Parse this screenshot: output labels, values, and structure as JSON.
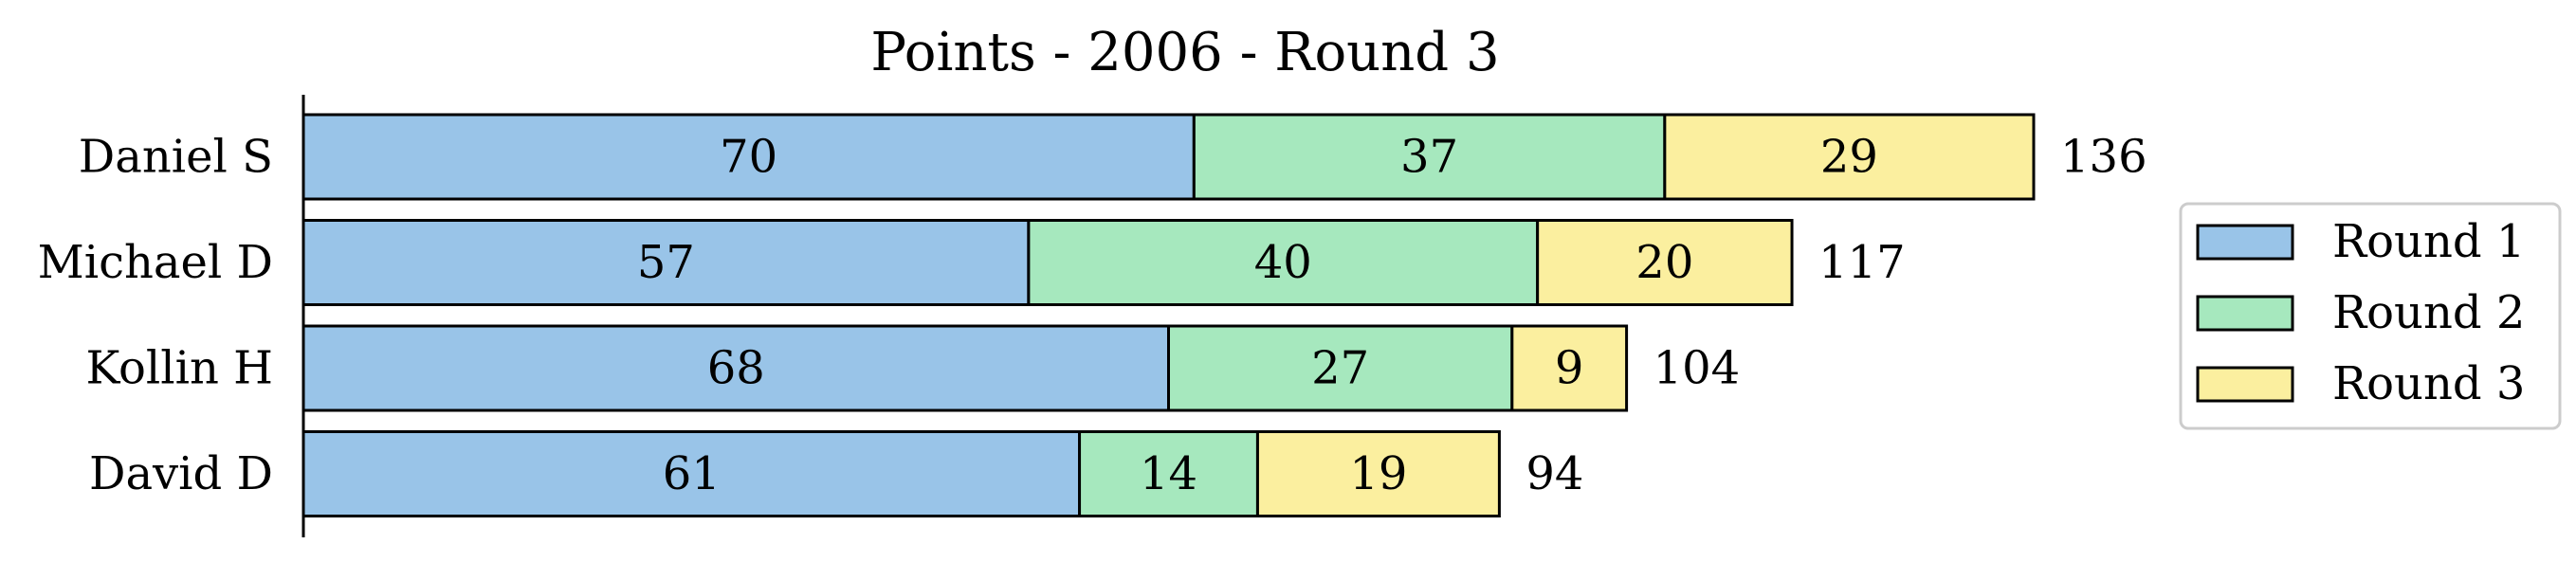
{
  "chart_data": {
    "type": "bar",
    "orientation": "horizontal",
    "stacked": true,
    "title": "Points - 2006 - Round 3",
    "xlabel": "",
    "ylabel": "",
    "categories": [
      "Daniel S",
      "Michael D",
      "Kollin H",
      "David D"
    ],
    "series": [
      {
        "name": "Round 1",
        "values": [
          70,
          57,
          68,
          61
        ],
        "color": "#99c4e8"
      },
      {
        "name": "Round 2",
        "values": [
          37,
          40,
          27,
          14
        ],
        "color": "#a6e8be"
      },
      {
        "name": "Round 3",
        "values": [
          29,
          20,
          9,
          19
        ],
        "color": "#fbef9f"
      }
    ],
    "totals": [
      136,
      117,
      104,
      94
    ],
    "xlim": [
      0,
      136
    ],
    "grid": false,
    "legend_position": "right"
  }
}
